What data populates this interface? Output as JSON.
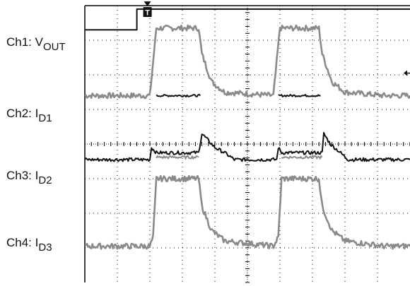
{
  "labels": [
    {
      "prefix": "Ch1: V",
      "sub": "OUT"
    },
    {
      "prefix": "Ch2: I",
      "sub": "D1"
    },
    {
      "prefix": "Ch3: I",
      "sub": "D2"
    },
    {
      "prefix": "Ch4: I",
      "sub": "D3"
    }
  ],
  "colors": {
    "grid": "#000000",
    "trace_dark": "#111111",
    "trace_gray": "#8a8a8a",
    "trace_mid": "#505050",
    "background": "#ffffff"
  },
  "markers": {
    "trigger_label": "T"
  },
  "chart_data": {
    "type": "line",
    "grid": true,
    "divisions": {
      "x": 10,
      "y": 8
    },
    "xlim": [
      0,
      10
    ],
    "ylim": [
      0,
      8
    ],
    "series": [
      {
        "name": "Ch1: VOUT",
        "color": "trace_dark",
        "points": [
          [
            0,
            7.3
          ],
          [
            1.6,
            7.3
          ],
          [
            1.6,
            7.9
          ],
          [
            10,
            7.9
          ]
        ]
      },
      {
        "name": "Ch2: ID1",
        "color": "trace_gray",
        "noise": 0.08,
        "points": [
          [
            0,
            5.4
          ],
          [
            2.0,
            5.4
          ],
          [
            2.2,
            7.35
          ],
          [
            3.5,
            7.35
          ],
          [
            3.6,
            6.6
          ],
          [
            3.9,
            5.8
          ],
          [
            4.3,
            5.5
          ],
          [
            5.8,
            5.4
          ],
          [
            6.0,
            7.35
          ],
          [
            7.2,
            7.35
          ],
          [
            7.3,
            6.6
          ],
          [
            7.6,
            5.8
          ],
          [
            8.0,
            5.5
          ],
          [
            9.2,
            5.4
          ],
          [
            10,
            5.4
          ]
        ]
      },
      {
        "name": "Ch2: ID1 (off segments)",
        "color": "trace_dark",
        "noise": 0.03,
        "segments": [
          [
            [
              2.2,
              5.4
            ],
            [
              3.55,
              5.4
            ]
          ],
          [
            [
              5.95,
              5.4
            ],
            [
              7.25,
              5.4
            ]
          ]
        ]
      },
      {
        "name": "Ch3: ID2",
        "color": "trace_dark",
        "noise": 0.05,
        "points": [
          [
            0,
            3.55
          ],
          [
            2.0,
            3.55
          ],
          [
            2.05,
            3.9
          ],
          [
            2.2,
            3.75
          ],
          [
            3.5,
            3.75
          ],
          [
            3.6,
            4.3
          ],
          [
            3.8,
            4.1
          ],
          [
            4.0,
            3.9
          ],
          [
            4.3,
            3.75
          ],
          [
            4.6,
            3.55
          ],
          [
            5.9,
            3.55
          ],
          [
            5.95,
            3.9
          ],
          [
            6.05,
            3.75
          ],
          [
            7.3,
            3.75
          ],
          [
            7.35,
            4.3
          ],
          [
            7.55,
            4.0
          ],
          [
            7.8,
            3.8
          ],
          [
            8.1,
            3.55
          ],
          [
            10,
            3.55
          ]
        ]
      },
      {
        "name": "Ch3: ID2 (gray overlay)",
        "color": "trace_gray",
        "noise": 0.04,
        "segments": [
          [
            [
              2.2,
              3.62
            ],
            [
              3.5,
              3.62
            ]
          ],
          [
            [
              6.05,
              3.62
            ],
            [
              7.3,
              3.62
            ]
          ]
        ]
      },
      {
        "name": "Ch4: ID3",
        "color": "trace_gray",
        "noise": 0.08,
        "points": [
          [
            0,
            1.05
          ],
          [
            2.0,
            1.05
          ],
          [
            2.1,
            1.3
          ],
          [
            2.2,
            3.0
          ],
          [
            3.5,
            3.0
          ],
          [
            3.6,
            2.2
          ],
          [
            3.9,
            1.5
          ],
          [
            4.3,
            1.2
          ],
          [
            5.8,
            1.05
          ],
          [
            5.95,
            1.3
          ],
          [
            6.05,
            3.0
          ],
          [
            7.2,
            3.0
          ],
          [
            7.3,
            2.2
          ],
          [
            7.6,
            1.5
          ],
          [
            8.0,
            1.2
          ],
          [
            9.2,
            1.05
          ],
          [
            10,
            1.05
          ]
        ]
      }
    ]
  }
}
